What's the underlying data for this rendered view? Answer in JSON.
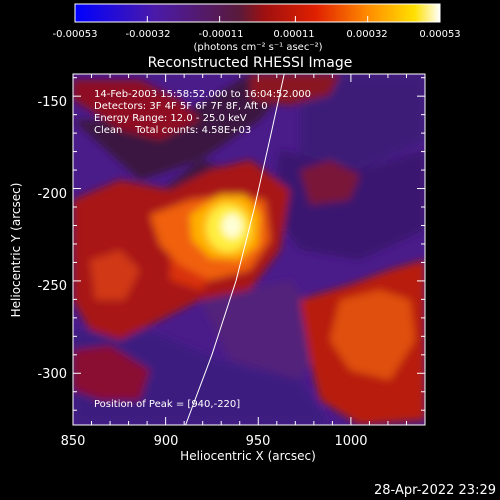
{
  "colorbar": {
    "ticks": [
      "-0.00053",
      "-0.00032",
      "-0.00011",
      "0.00011",
      "0.00032",
      "0.00053"
    ],
    "label": "(photons cm⁻² s⁻¹ asec⁻²)",
    "range": [
      -0.00053,
      0.00053
    ]
  },
  "chart_data": {
    "type": "heatmap",
    "title": "Reconstructed RHESSI Image",
    "xlabel": "Heliocentric X (arcsec)",
    "ylabel": "Heliocentric Y (arcsec)",
    "xlim": [
      850,
      1040
    ],
    "ylim": [
      -328,
      -138
    ],
    "x_ticks": [
      850,
      900,
      950,
      1000
    ],
    "y_ticks": [
      -150,
      -200,
      -250,
      -300
    ],
    "info_lines": [
      "14-Feb-2003 15:58:52.000 to 16:04:52.000",
      "Detectors: 3F 4F 5F 6F 7F 8F, Aft 0",
      "Energy Range: 12.0 - 25.0 keV",
      "Clean    Total counts: 4.58E+03"
    ],
    "peak_label": "Position of Peak = [940,-220]",
    "peak": [
      940,
      -220
    ],
    "colormap": "blue-purple-red-yellow-white",
    "limb": [
      [
        910,
        -330
      ],
      [
        925,
        -290
      ],
      [
        938,
        -250
      ],
      [
        948,
        -210
      ],
      [
        957,
        -170
      ],
      [
        964,
        -138
      ]
    ]
  },
  "timestamp": "28-Apr-2022 23:29"
}
